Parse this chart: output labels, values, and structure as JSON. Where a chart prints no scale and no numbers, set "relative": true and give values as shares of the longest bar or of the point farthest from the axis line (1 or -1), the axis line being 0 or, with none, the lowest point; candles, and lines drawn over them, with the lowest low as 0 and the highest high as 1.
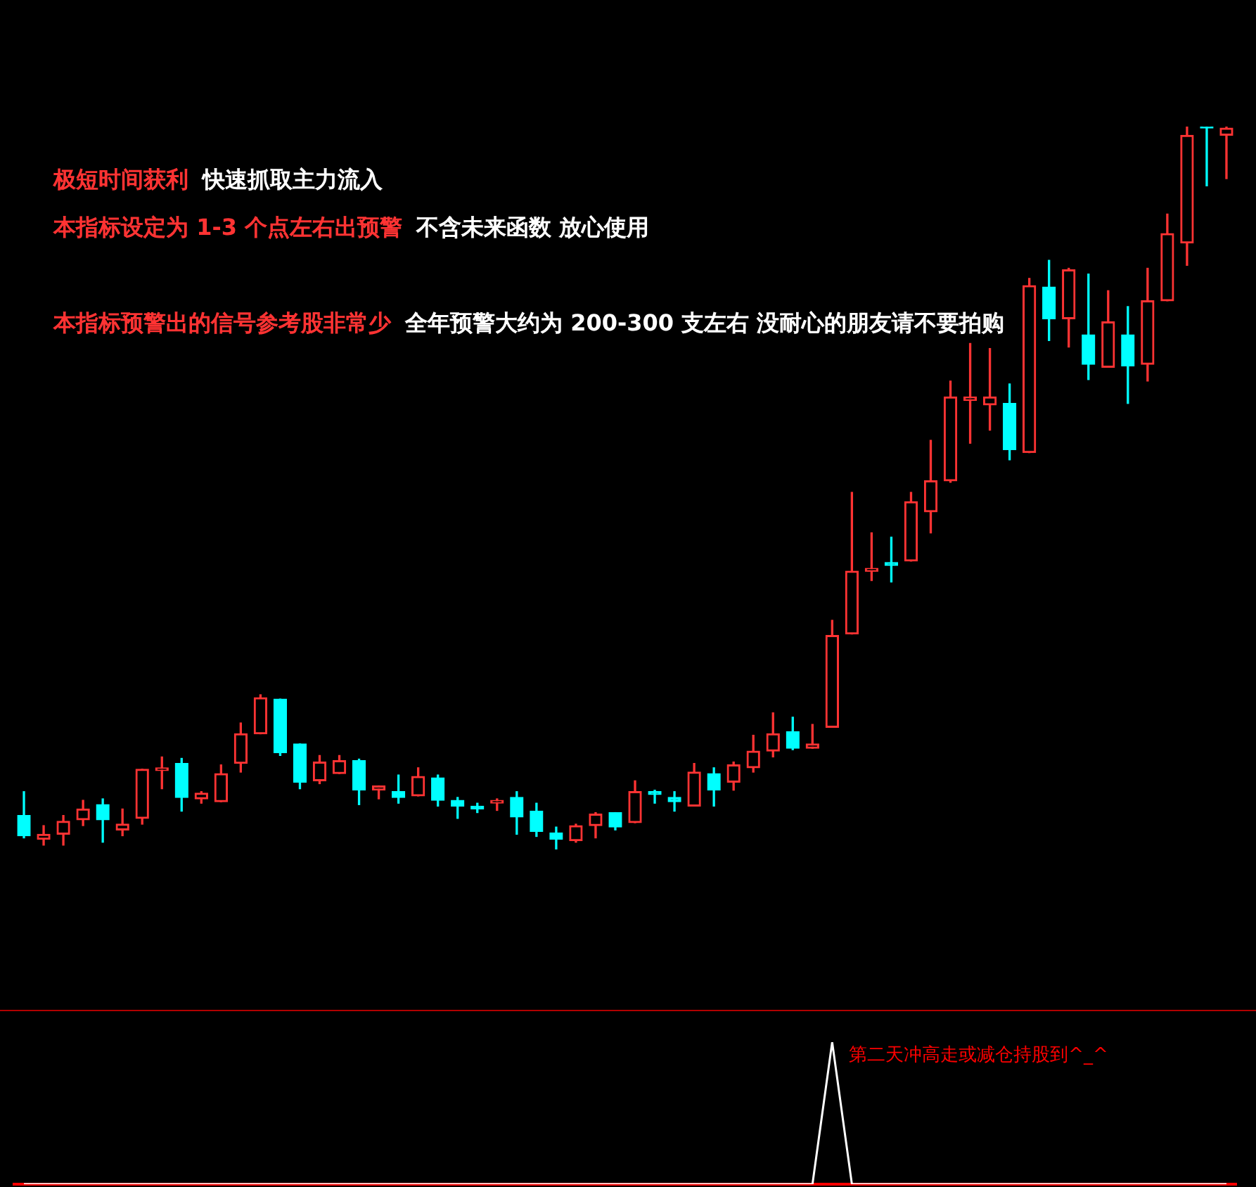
{
  "chart_data": [
    {
      "type": "candlestick",
      "relative": true,
      "categories": [
        null,
        null,
        null,
        null,
        null,
        null,
        null,
        null,
        null,
        null,
        null,
        null,
        null,
        null,
        null,
        null,
        null,
        null,
        null,
        null,
        null,
        null,
        null,
        null,
        null,
        null,
        null,
        null,
        null,
        null,
        null,
        null,
        null,
        null,
        null,
        null,
        null,
        null,
        null,
        null,
        null,
        null,
        null,
        null,
        null,
        null,
        null,
        null,
        null,
        null,
        null,
        null,
        null,
        null,
        null,
        null,
        null,
        null,
        null,
        null,
        null,
        null
      ],
      "ohlc": [
        [
          0.047,
          0.08,
          0.016,
          0.019
        ],
        [
          0.014,
          0.033,
          0.006,
          0.021
        ],
        [
          0.021,
          0.047,
          0.006,
          0.039
        ],
        [
          0.041,
          0.068,
          0.033,
          0.056
        ],
        [
          0.062,
          0.07,
          0.01,
          0.041
        ],
        [
          0.027,
          0.056,
          0.019,
          0.035
        ],
        [
          0.043,
          0.111,
          0.035,
          0.111
        ],
        [
          0.109,
          0.128,
          0.084,
          0.111
        ],
        [
          0.119,
          0.126,
          0.053,
          0.072
        ],
        [
          0.07,
          0.08,
          0.064,
          0.078
        ],
        [
          0.066,
          0.117,
          0.066,
          0.105
        ],
        [
          0.119,
          0.175,
          0.107,
          0.16
        ],
        [
          0.16,
          0.214,
          0.16,
          0.21
        ],
        [
          0.208,
          0.208,
          0.13,
          0.134
        ],
        [
          0.146,
          0.146,
          0.084,
          0.093
        ],
        [
          0.095,
          0.13,
          0.091,
          0.121
        ],
        [
          0.105,
          0.13,
          0.105,
          0.123
        ],
        [
          0.123,
          0.125,
          0.062,
          0.082
        ],
        [
          0.082,
          0.088,
          0.07,
          0.088
        ],
        [
          0.08,
          0.103,
          0.064,
          0.072
        ],
        [
          0.074,
          0.113,
          0.074,
          0.101
        ],
        [
          0.099,
          0.103,
          0.06,
          0.068
        ],
        [
          0.068,
          0.072,
          0.043,
          0.06
        ],
        [
          0.058,
          0.064,
          0.051,
          0.056
        ],
        [
          0.064,
          0.07,
          0.054,
          0.068
        ],
        [
          0.072,
          0.08,
          0.021,
          0.045
        ],
        [
          0.053,
          0.064,
          0.018,
          0.025
        ],
        [
          0.023,
          0.031,
          0,
          0.014
        ],
        [
          0.012,
          0.035,
          0.01,
          0.033
        ],
        [
          0.033,
          0.051,
          0.016,
          0.049
        ],
        [
          0.051,
          0.051,
          0.027,
          0.031
        ],
        [
          0.037,
          0.095,
          0.037,
          0.08
        ],
        [
          0.08,
          0.082,
          0.064,
          0.076
        ],
        [
          0.072,
          0.08,
          0.053,
          0.066
        ],
        [
          0.06,
          0.119,
          0.06,
          0.107
        ],
        [
          0.105,
          0.113,
          0.06,
          0.082
        ],
        [
          0.093,
          0.121,
          0.082,
          0.117
        ],
        [
          0.113,
          0.158,
          0.107,
          0.136
        ],
        [
          0.136,
          0.189,
          0.128,
          0.16
        ],
        [
          0.163,
          0.183,
          0.138,
          0.14
        ],
        [
          0.14,
          0.173,
          0.14,
          0.146
        ],
        [
          0.169,
          0.317,
          0.169,
          0.296
        ],
        [
          0.298,
          0.494,
          0.298,
          0.385
        ],
        [
          0.385,
          0.438,
          0.372,
          0.387
        ],
        [
          0.397,
          0.432,
          0.37,
          0.393
        ],
        [
          0.399,
          0.494,
          0.399,
          0.481
        ],
        [
          0.467,
          0.566,
          0.438,
          0.51
        ],
        [
          0.51,
          0.648,
          0.508,
          0.626
        ],
        [
          0.621,
          0.7,
          0.562,
          0.626
        ],
        [
          0.615,
          0.693,
          0.58,
          0.626
        ],
        [
          0.617,
          0.644,
          0.539,
          0.553
        ],
        [
          0.549,
          0.79,
          0.549,
          0.78
        ],
        [
          0.778,
          0.815,
          0.704,
          0.734
        ],
        [
          0.734,
          0.804,
          0.695,
          0.802
        ],
        [
          0.712,
          0.796,
          0.65,
          0.671
        ],
        [
          0.667,
          0.773,
          0.667,
          0.73
        ],
        [
          0.712,
          0.751,
          0.617,
          0.669
        ],
        [
          0.671,
          0.804,
          0.648,
          0.759
        ],
        [
          0.759,
          0.879,
          0.759,
          0.852
        ],
        [
          0.839,
          1,
          0.808,
          0.988
        ],
        [
          1,
          1,
          0.918,
          0.998
        ],
        [
          0.988,
          1,
          0.928,
          0.998
        ]
      ],
      "colors": [
        "#00ffff",
        "#ff3333",
        "#ff3333",
        "#ff3333",
        "#00ffff",
        "#ff3333",
        "#ff3333",
        "#ff3333",
        "#00ffff",
        "#ff3333",
        "#ff3333",
        "#ff3333",
        "#ff3333",
        "#00ffff",
        "#00ffff",
        "#ff3333",
        "#ff3333",
        "#00ffff",
        "#ff3333",
        "#00ffff",
        "#ff3333",
        "#00ffff",
        "#00ffff",
        "#00ffff",
        "#ff3333",
        "#00ffff",
        "#00ffff",
        "#00ffff",
        "#ff3333",
        "#ff3333",
        "#00ffff",
        "#ff3333",
        "#00ffff",
        "#00ffff",
        "#ff3333",
        "#00ffff",
        "#ff3333",
        "#ff3333",
        "#ff3333",
        "#00ffff",
        "#ff3333",
        "#ff3333",
        "#ff3333",
        "#ff3333",
        "#00ffff",
        "#ff3333",
        "#ff3333",
        "#ff3333",
        "#ff3333",
        "#ff3333",
        "#00ffff",
        "#ff3333",
        "#00ffff",
        "#ff3333",
        "#00ffff",
        "#ff3333",
        "#00ffff",
        "#ff3333",
        "#ff3333",
        "#ff3333",
        "#00ffff",
        "#ff3333"
      ],
      "annotations": [
        "极短时间获利",
        "快速抓取主力流入",
        "本指标设定为 1-3 个点左右出预警",
        "不含未来函数 放心使用",
        "本指标预警出的信号参考股非常少",
        "全年预警大约为 200-300 支左右 没耐心的朋友请不要拍购"
      ]
    },
    {
      "type": "line",
      "relative": true,
      "color": "#ffffff",
      "categories": [
        null,
        null,
        null,
        null,
        null,
        null,
        null,
        null,
        null,
        null,
        null,
        null,
        null,
        null,
        null,
        null,
        null,
        null,
        null,
        null,
        null,
        null,
        null,
        null,
        null,
        null,
        null,
        null,
        null,
        null,
        null,
        null,
        null,
        null,
        null,
        null,
        null,
        null,
        null,
        null,
        null,
        null,
        null,
        null,
        null,
        null,
        null,
        null,
        null,
        null,
        null,
        null,
        null,
        null,
        null,
        null,
        null,
        null,
        null,
        null,
        null,
        null
      ],
      "values": [
        0,
        0,
        0,
        0,
        0,
        0,
        0,
        0,
        0,
        0,
        0,
        0,
        0,
        0,
        0,
        0,
        0,
        0,
        0,
        0,
        0,
        0,
        0,
        0,
        0,
        0,
        0,
        0,
        0,
        0,
        0,
        0,
        0,
        0,
        0,
        0,
        0,
        0,
        0,
        0,
        0,
        1,
        0,
        0,
        0,
        0,
        0,
        0,
        0,
        0,
        0,
        0,
        0,
        0,
        0,
        0,
        0,
        0,
        0,
        0,
        0,
        0
      ],
      "annotations": [
        "第二天冲高走或减仓持股到^_^"
      ]
    }
  ]
}
